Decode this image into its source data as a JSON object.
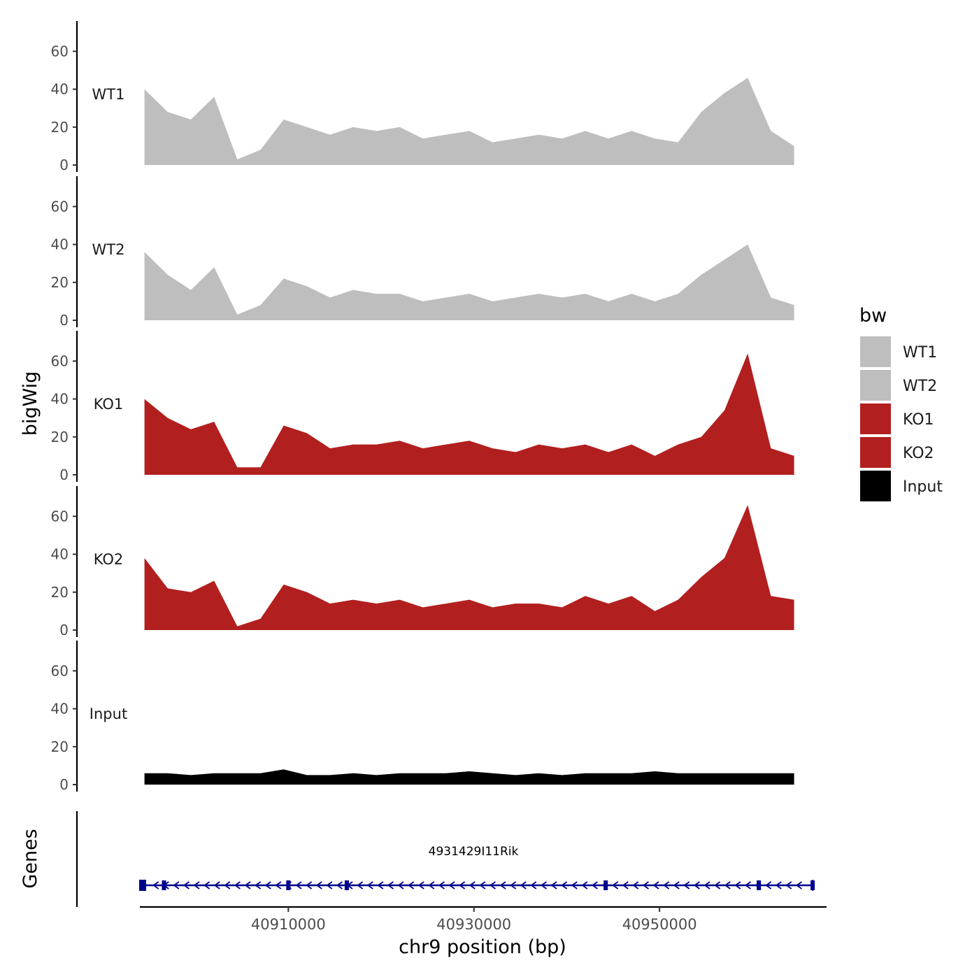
{
  "chart_data": {
    "type": "area",
    "title": "",
    "xlabel": "chr9 position (bp)",
    "ylabel": "bigWig",
    "genes_panel_label": "Genes",
    "xlim": [
      40894000,
      40968000
    ],
    "x_ticks": [
      40910000,
      40930000,
      40950000
    ],
    "x_tick_labels": [
      "40910000",
      "40930000",
      "40950000"
    ],
    "ylim": [
      0,
      76
    ],
    "y_ticks": [
      0,
      20,
      40,
      60
    ],
    "y_tick_labels": [
      "0",
      "20",
      "40",
      "60"
    ],
    "legend": {
      "title": "bw",
      "placement": "right",
      "entries": [
        {
          "label": "WT1",
          "color": "#bebebe"
        },
        {
          "label": "WT2",
          "color": "#bebebe"
        },
        {
          "label": "KO1",
          "color": "#b21f1f"
        },
        {
          "label": "KO2",
          "color": "#b21f1f"
        },
        {
          "label": "Input",
          "color": "#000000"
        }
      ]
    },
    "x_positions": [
      40894500,
      40897000,
      40899500,
      40902000,
      40904500,
      40907000,
      40909500,
      40912000,
      40914500,
      40917000,
      40919500,
      40922000,
      40924500,
      40927000,
      40929500,
      40932000,
      40934500,
      40937000,
      40939500,
      40942000,
      40944500,
      40947000,
      40949500,
      40952000,
      40954500,
      40957000,
      40959500,
      40962000,
      40964500
    ],
    "series": [
      {
        "name": "WT1",
        "color": "#bebebe",
        "values": [
          40,
          28,
          24,
          36,
          3,
          8,
          24,
          20,
          16,
          20,
          18,
          20,
          14,
          16,
          18,
          12,
          14,
          16,
          14,
          18,
          14,
          18,
          14,
          12,
          28,
          38,
          46,
          18,
          10
        ]
      },
      {
        "name": "WT2",
        "color": "#bebebe",
        "values": [
          36,
          24,
          16,
          28,
          3,
          8,
          22,
          18,
          12,
          16,
          14,
          14,
          10,
          12,
          14,
          10,
          12,
          14,
          12,
          14,
          10,
          14,
          10,
          14,
          24,
          32,
          40,
          12,
          8
        ]
      },
      {
        "name": "KO1",
        "color": "#b21f1f",
        "values": [
          40,
          30,
          24,
          28,
          4,
          4,
          26,
          22,
          14,
          16,
          16,
          18,
          14,
          16,
          18,
          14,
          12,
          16,
          14,
          16,
          12,
          16,
          10,
          16,
          20,
          34,
          64,
          14,
          10
        ]
      },
      {
        "name": "KO2",
        "color": "#b21f1f",
        "values": [
          38,
          22,
          20,
          26,
          2,
          6,
          24,
          20,
          14,
          16,
          14,
          16,
          12,
          14,
          16,
          12,
          14,
          14,
          12,
          18,
          14,
          18,
          10,
          16,
          28,
          38,
          66,
          18,
          16
        ]
      },
      {
        "name": "Input",
        "color": "#000000",
        "values": [
          6,
          6,
          5,
          6,
          6,
          6,
          8,
          5,
          5,
          6,
          5,
          6,
          6,
          6,
          7,
          6,
          5,
          6,
          5,
          6,
          6,
          6,
          7,
          6,
          6,
          6,
          6,
          6,
          6
        ]
      }
    ],
    "gene": {
      "name": "4931429I11Rik",
      "strand": "-",
      "start": 40894200,
      "end": 40966500,
      "exons": [
        40894300,
        40896600,
        40910000,
        40916300,
        40944200,
        40960700,
        40966500
      ],
      "color": "#00008b"
    }
  }
}
